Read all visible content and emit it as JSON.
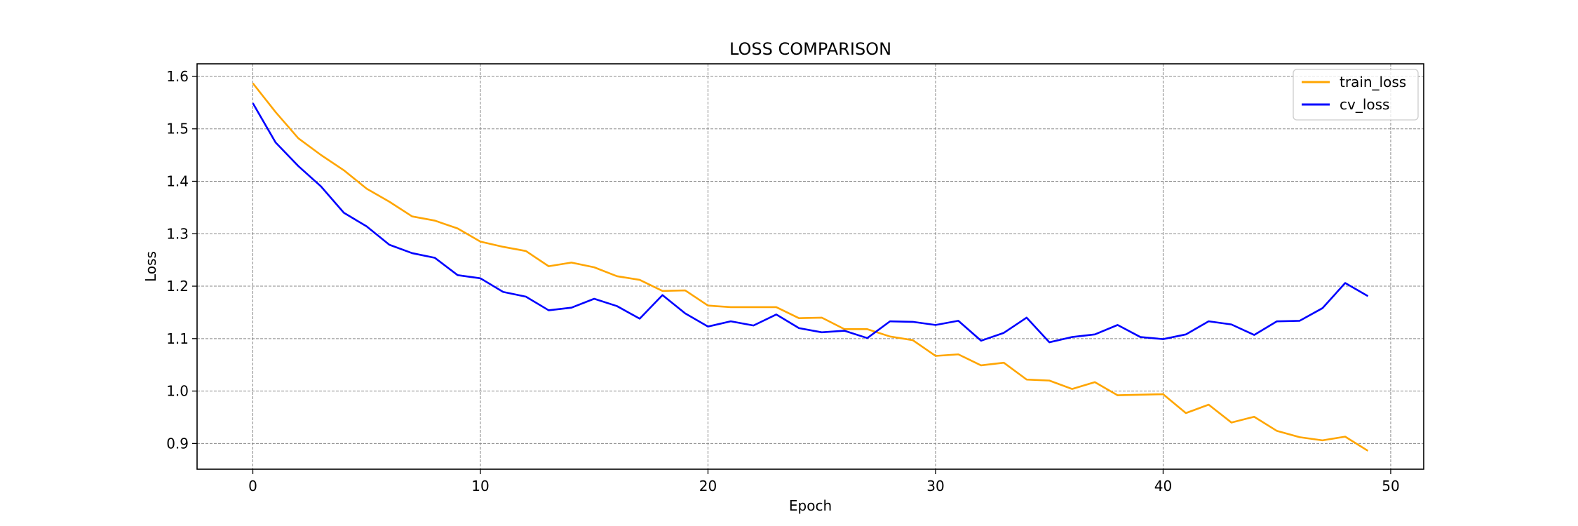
{
  "chart_data": {
    "type": "line",
    "title": "LOSS COMPARISON",
    "xlabel": "Epoch",
    "ylabel": "Loss",
    "xlim": [
      -2.45,
      51.45
    ],
    "ylim": [
      0.851,
      1.624
    ],
    "xticks": [
      0,
      10,
      20,
      30,
      40,
      50
    ],
    "yticks": [
      0.9,
      1.0,
      1.1,
      1.2,
      1.3,
      1.4,
      1.5,
      1.6
    ],
    "xtick_labels": [
      "0",
      "10",
      "20",
      "30",
      "40",
      "50"
    ],
    "ytick_labels": [
      "0.9",
      "1.0",
      "1.1",
      "1.2",
      "1.3",
      "1.4",
      "1.5",
      "1.6"
    ],
    "grid": true,
    "legend_position": "top-right",
    "x": [
      0,
      1,
      2,
      3,
      4,
      5,
      6,
      7,
      8,
      9,
      10,
      11,
      12,
      13,
      14,
      15,
      16,
      17,
      18,
      19,
      20,
      21,
      22,
      23,
      24,
      25,
      26,
      27,
      28,
      29,
      30,
      31,
      32,
      33,
      34,
      35,
      36,
      37,
      38,
      39,
      40,
      41,
      42,
      43,
      44,
      45,
      46,
      47,
      48,
      49
    ],
    "series": [
      {
        "name": "train_loss",
        "color": "#FFA500",
        "values": [
          1.587,
          1.532,
          1.482,
          1.45,
          1.421,
          1.386,
          1.361,
          1.333,
          1.325,
          1.31,
          1.285,
          1.275,
          1.267,
          1.238,
          1.245,
          1.236,
          1.219,
          1.212,
          1.191,
          1.192,
          1.163,
          1.16,
          1.16,
          1.16,
          1.139,
          1.14,
          1.118,
          1.118,
          1.104,
          1.097,
          1.067,
          1.07,
          1.049,
          1.054,
          1.022,
          1.02,
          1.004,
          1.017,
          0.992,
          0.993,
          0.994,
          0.958,
          0.974,
          0.94,
          0.951,
          0.924,
          0.912,
          0.906,
          0.913,
          0.886
        ]
      },
      {
        "name": "cv_loss",
        "color": "#0000FF",
        "values": [
          1.549,
          1.474,
          1.429,
          1.39,
          1.34,
          1.314,
          1.279,
          1.263,
          1.254,
          1.221,
          1.215,
          1.189,
          1.18,
          1.154,
          1.159,
          1.176,
          1.162,
          1.138,
          1.183,
          1.148,
          1.123,
          1.133,
          1.125,
          1.146,
          1.12,
          1.112,
          1.115,
          1.101,
          1.133,
          1.132,
          1.126,
          1.134,
          1.096,
          1.111,
          1.14,
          1.093,
          1.103,
          1.108,
          1.126,
          1.103,
          1.099,
          1.108,
          1.133,
          1.127,
          1.107,
          1.133,
          1.134,
          1.158,
          1.206,
          1.181
        ]
      }
    ]
  }
}
